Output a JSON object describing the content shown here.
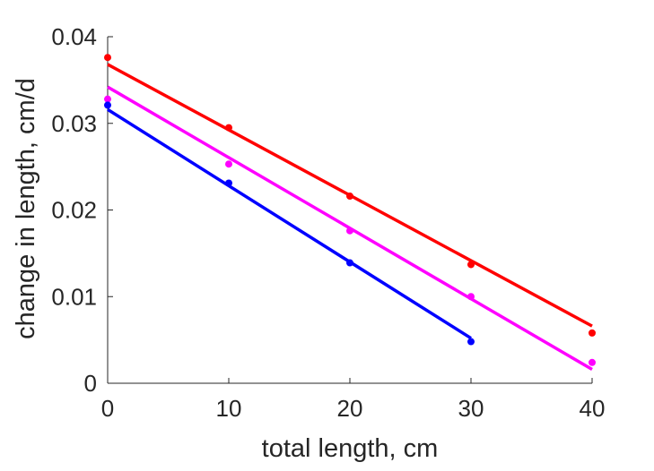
{
  "chart_data": {
    "type": "scatter",
    "title": "",
    "xlabel": "total length, cm",
    "ylabel": "change in length, cm/d",
    "xlim": [
      0,
      40
    ],
    "ylim": [
      0,
      0.04
    ],
    "xticks": [
      0,
      10,
      20,
      30,
      40
    ],
    "xtick_labels": [
      "0",
      "10",
      "20",
      "30",
      "40"
    ],
    "yticks": [
      0,
      0.01,
      0.02,
      0.03,
      0.04
    ],
    "ytick_labels": [
      "0",
      "0.01",
      "0.02",
      "0.03",
      "0.04"
    ],
    "grid": false,
    "legend": "none",
    "series": [
      {
        "color": "#ff0000",
        "points": [
          {
            "x": 0,
            "y": 0.0376
          },
          {
            "x": 10,
            "y": 0.0295
          },
          {
            "x": 20,
            "y": 0.0216
          },
          {
            "x": 30,
            "y": 0.0137
          },
          {
            "x": 40,
            "y": 0.0058
          }
        ],
        "fit_line": [
          {
            "x": 0,
            "y": 0.0368
          },
          {
            "x": 40,
            "y": 0.0066
          }
        ]
      },
      {
        "color": "#ff00ff",
        "points": [
          {
            "x": 0,
            "y": 0.0328
          },
          {
            "x": 10,
            "y": 0.0253
          },
          {
            "x": 20,
            "y": 0.0176
          },
          {
            "x": 30,
            "y": 0.01
          },
          {
            "x": 40,
            "y": 0.0024
          }
        ],
        "fit_line": [
          {
            "x": 0,
            "y": 0.0342
          },
          {
            "x": 40,
            "y": 0.0016
          }
        ]
      },
      {
        "color": "#0000ff",
        "points": [
          {
            "x": 0,
            "y": 0.0321
          },
          {
            "x": 10,
            "y": 0.0231
          },
          {
            "x": 20,
            "y": 0.0139
          },
          {
            "x": 30,
            "y": 0.0048
          }
        ],
        "fit_line": [
          {
            "x": 0,
            "y": 0.0316
          },
          {
            "x": 30,
            "y": 0.0052
          }
        ]
      }
    ]
  }
}
